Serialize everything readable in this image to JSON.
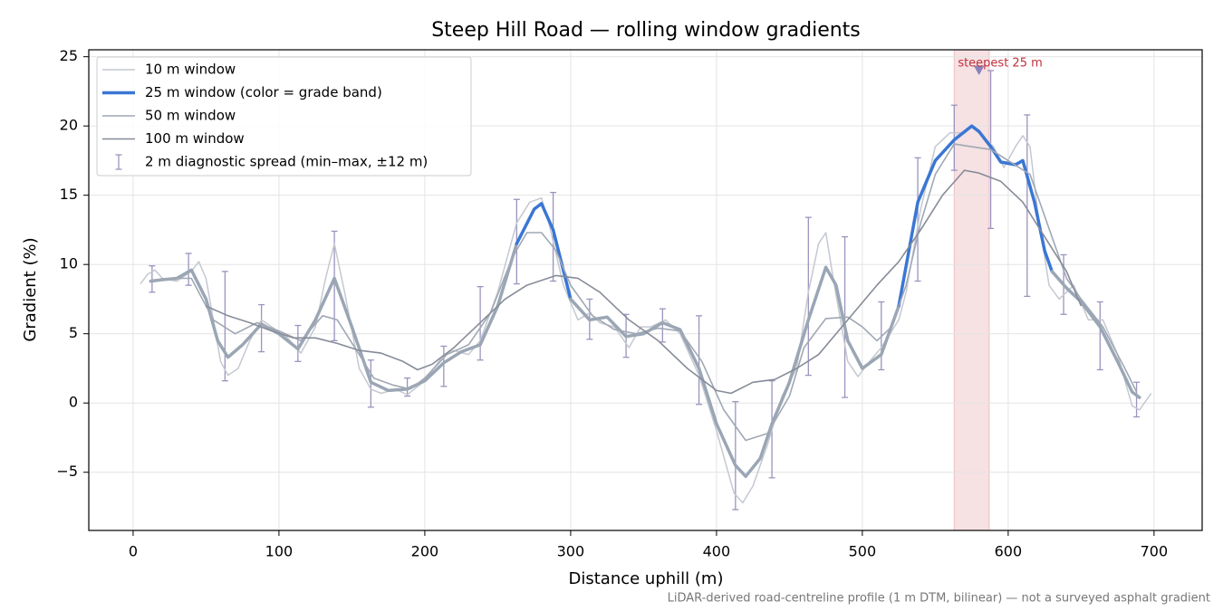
{
  "chart_data": {
    "type": "line",
    "title": "Steep Hill Road — rolling window gradients",
    "xlabel": "Distance uphill (m)",
    "ylabel": "Gradient (%)",
    "footnote": "LiDAR-derived road-centreline profile (1 m DTM, bilinear) — not a surveyed asphalt gradient",
    "xlim": [
      -30.4,
      733
    ],
    "ylim": [
      -9.2,
      25.5
    ],
    "xticks": [
      0,
      100,
      200,
      300,
      400,
      500,
      600,
      700
    ],
    "yticks": [
      {
        "value": -5,
        "label": "−5"
      },
      0,
      5,
      10,
      15,
      20,
      25
    ],
    "grid": true,
    "legend": "upper left",
    "series": [
      {
        "name": "10 m window",
        "color": "#c4c8d0",
        "width": 1.5,
        "x": [
          5,
          10,
          15,
          20,
          30,
          40,
          45,
          50,
          55,
          60,
          65,
          72,
          80,
          88,
          95,
          105,
          115,
          125,
          132,
          138,
          145,
          155,
          163,
          170,
          180,
          188,
          200,
          213,
          220,
          230,
          238,
          250,
          263,
          272,
          280,
          285,
          295,
          305,
          313,
          320,
          330,
          340,
          348,
          355,
          365,
          375,
          388,
          400,
          412,
          418,
          425,
          435,
          445,
          455,
          463,
          470,
          475,
          480,
          490,
          497,
          505,
          513,
          525,
          530,
          540,
          550,
          560,
          570,
          575,
          580,
          590,
          597,
          605,
          610,
          615,
          620,
          628,
          635,
          645,
          655,
          665,
          675,
          685,
          690,
          698
        ],
        "values": [
          8.6,
          9.3,
          9.6,
          9.0,
          8.8,
          9.5,
          10.2,
          9.0,
          6.0,
          3.0,
          2.0,
          2.5,
          4.5,
          6.0,
          5.5,
          4.8,
          3.6,
          5.5,
          9.0,
          11.5,
          8.0,
          2.5,
          1.0,
          0.7,
          1.0,
          0.6,
          1.6,
          3.5,
          3.8,
          3.5,
          4.5,
          8.0,
          13.0,
          14.5,
          14.8,
          13.0,
          8.5,
          6.0,
          6.5,
          5.8,
          5.5,
          4.0,
          5.5,
          5.5,
          6.0,
          5.0,
          2.0,
          -2.0,
          -6.5,
          -7.2,
          -6.0,
          -3.0,
          0.5,
          2.5,
          8.0,
          11.5,
          12.3,
          9.0,
          3.0,
          1.9,
          3.0,
          4.0,
          6.0,
          8.0,
          14.0,
          18.5,
          19.5,
          19.5,
          20.0,
          19.5,
          18.5,
          17.0,
          18.5,
          19.3,
          18.5,
          14.0,
          8.5,
          7.5,
          8.5,
          6.0,
          6.0,
          3.5,
          -0.2,
          -0.5,
          0.7
        ]
      },
      {
        "name": "25 m window (color = grade band)",
        "color": "#3a76d4",
        "width": 3.5,
        "grade_bands": [
          {
            "below": 10,
            "color": "#9aa6b4"
          },
          {
            "above": 20,
            "color": "#e8a030"
          }
        ],
        "x": [
          12,
          20,
          30,
          40,
          50,
          58,
          65,
          75,
          88,
          100,
          113,
          125,
          138,
          150,
          163,
          175,
          188,
          200,
          213,
          225,
          238,
          250,
          263,
          275,
          280,
          288,
          300,
          313,
          325,
          338,
          350,
          363,
          375,
          388,
          400,
          413,
          420,
          430,
          438,
          450,
          463,
          475,
          482,
          490,
          500,
          513,
          525,
          538,
          550,
          563,
          575,
          580,
          588,
          595,
          605,
          610,
          618,
          625,
          630,
          640,
          650,
          663,
          675,
          685,
          690
        ],
        "values": [
          8.8,
          8.9,
          9.0,
          9.6,
          7.5,
          4.5,
          3.3,
          4.2,
          5.7,
          5.0,
          3.9,
          6.0,
          9.0,
          5.5,
          1.5,
          0.9,
          1.0,
          1.6,
          2.9,
          3.7,
          4.2,
          7.0,
          11.5,
          14.0,
          14.4,
          12.5,
          7.5,
          6.0,
          6.2,
          4.8,
          5.0,
          5.8,
          5.3,
          2.5,
          -1.5,
          -4.5,
          -5.3,
          -4.0,
          -1.5,
          1.5,
          6.0,
          9.8,
          8.5,
          4.5,
          2.5,
          3.5,
          7.0,
          14.5,
          17.5,
          19.0,
          20.0,
          19.6,
          18.5,
          17.4,
          17.2,
          17.5,
          14.5,
          11.0,
          9.5,
          8.3,
          7.3,
          5.5,
          3.0,
          0.8,
          0.4
        ]
      },
      {
        "name": "50 m window",
        "color": "#a0a8b4",
        "width": 1.6,
        "x": [
          12,
          25,
          40,
          55,
          70,
          85,
          100,
          115,
          130,
          140,
          155,
          165,
          178,
          190,
          200,
          215,
          230,
          245,
          260,
          270,
          280,
          290,
          300,
          315,
          330,
          345,
          360,
          375,
          390,
          405,
          420,
          435,
          450,
          460,
          475,
          490,
          500,
          510,
          520,
          530,
          540,
          550,
          563,
          575,
          588,
          600,
          615,
          625,
          640,
          650,
          665,
          680,
          688
        ],
        "values": [
          8.8,
          9.0,
          9.0,
          6.0,
          5.0,
          5.8,
          5.2,
          4.5,
          6.3,
          6.0,
          3.5,
          1.8,
          1.3,
          1.0,
          1.8,
          3.5,
          4.2,
          6.5,
          10.5,
          12.3,
          12.3,
          11.0,
          8.5,
          6.3,
          5.3,
          5.0,
          5.4,
          5.2,
          3.0,
          -0.5,
          -2.7,
          -2.2,
          0.5,
          4.0,
          6.1,
          6.2,
          5.5,
          4.5,
          5.5,
          8.5,
          13.0,
          16.5,
          18.7,
          18.5,
          18.3,
          17.5,
          16.5,
          13.5,
          9.0,
          7.5,
          5.5,
          2.5,
          0.8
        ]
      },
      {
        "name": "100 m window",
        "color": "#868c98",
        "width": 1.6,
        "x": [
          50,
          65,
          80,
          95,
          110,
          125,
          140,
          155,
          170,
          185,
          195,
          205,
          220,
          240,
          255,
          270,
          290,
          305,
          320,
          340,
          360,
          380,
          400,
          410,
          425,
          440,
          455,
          470,
          490,
          510,
          525,
          540,
          555,
          570,
          580,
          595,
          610,
          625,
          640,
          650
        ],
        "values": [
          7.0,
          6.3,
          5.8,
          5.2,
          4.7,
          4.7,
          4.3,
          3.8,
          3.6,
          3.0,
          2.4,
          2.8,
          4.0,
          6.0,
          7.5,
          8.5,
          9.2,
          9.0,
          8.0,
          6.0,
          4.5,
          2.5,
          0.9,
          0.7,
          1.5,
          1.7,
          2.5,
          3.5,
          6.0,
          8.5,
          10.2,
          12.5,
          15.0,
          16.8,
          16.6,
          16.0,
          14.5,
          12.0,
          9.5,
          7.0
        ]
      }
    ],
    "errorbars": {
      "name": "2 m diagnostic spread (min–max, ±12 m)",
      "color": "#9a94be",
      "x": [
        13,
        38,
        63,
        88,
        113,
        138,
        163,
        188,
        213,
        238,
        263,
        288,
        313,
        338,
        363,
        388,
        413,
        438,
        463,
        488,
        513,
        538,
        563,
        588,
        613,
        638,
        663,
        688
      ],
      "low": [
        8.0,
        8.5,
        1.6,
        3.7,
        3.0,
        4.5,
        -0.3,
        0.5,
        1.2,
        3.1,
        8.6,
        8.8,
        4.6,
        3.3,
        4.4,
        -0.1,
        -7.7,
        -5.4,
        2.0,
        0.4,
        2.4,
        8.8,
        16.8,
        12.6,
        7.7,
        6.4,
        2.4,
        -1.0
      ],
      "high": [
        9.9,
        10.8,
        9.5,
        7.1,
        5.6,
        12.4,
        3.1,
        1.8,
        4.1,
        8.4,
        14.7,
        15.2,
        7.5,
        6.4,
        6.8,
        6.3,
        0.1,
        1.6,
        13.4,
        12.0,
        7.3,
        17.7,
        21.5,
        24.0,
        20.8,
        10.7,
        7.3,
        1.5
      ]
    },
    "highlight": {
      "x": [
        563,
        587
      ],
      "color": "#e8b4b8"
    },
    "marker": {
      "x": 580,
      "y": 24,
      "label": "steepest 25 m",
      "color": "#c0303a"
    }
  }
}
